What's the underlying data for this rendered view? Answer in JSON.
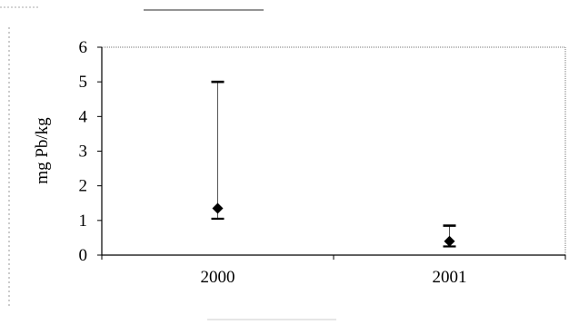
{
  "chart_data": {
    "type": "scatter",
    "title": "",
    "xlabel": "",
    "ylabel": "mg Pb/kg",
    "categories": [
      "2000",
      "2001"
    ],
    "ylim": [
      0,
      6
    ],
    "yticks": [
      "0",
      "1",
      "2",
      "3",
      "4",
      "5",
      "6"
    ],
    "grid": false,
    "legend": "none",
    "series": [
      {
        "values": [
          1.35,
          0.4
        ],
        "error_low": [
          1.05,
          0.25
        ],
        "error_high": [
          5.0,
          0.85
        ],
        "marker": "diamond",
        "color": "#000000"
      }
    ]
  }
}
